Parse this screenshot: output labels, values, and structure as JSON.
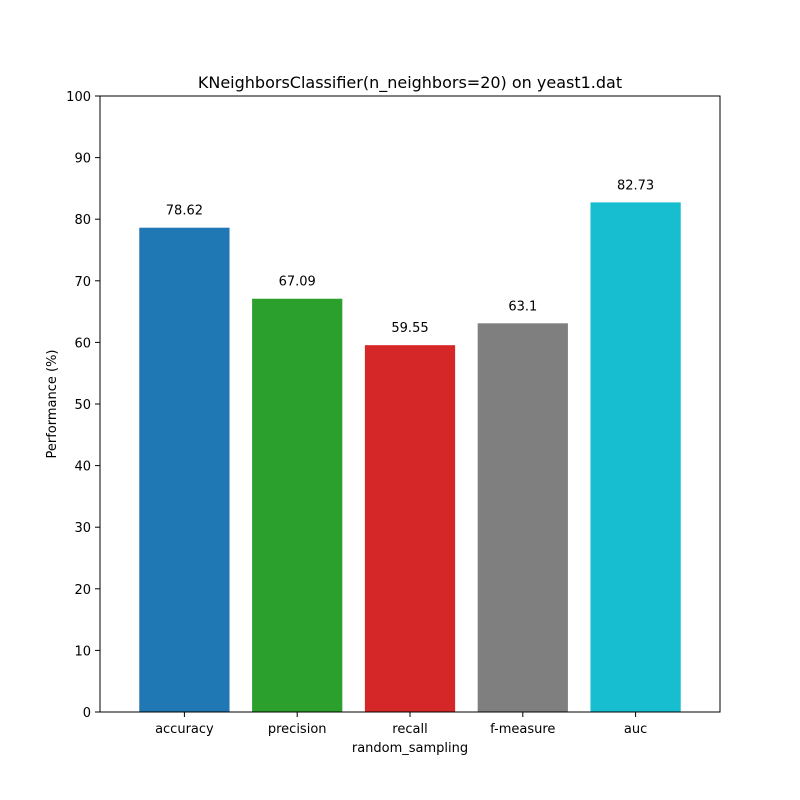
{
  "chart_data": {
    "type": "bar",
    "title": "KNeighborsClassifier(n_neighbors=20) on yeast1.dat",
    "xlabel": "random_sampling",
    "ylabel": "Performance (%)",
    "categories": [
      "accuracy",
      "precision",
      "recall",
      "f-measure",
      "auc"
    ],
    "values": [
      78.62,
      67.09,
      59.55,
      63.1,
      82.73
    ],
    "value_labels": [
      "78.62",
      "67.09",
      "59.55",
      "63.1",
      "82.73"
    ],
    "colors": [
      "#1f77b4",
      "#2ca02c",
      "#d62728",
      "#7f7f7f",
      "#17becf"
    ],
    "ylim": [
      0,
      100
    ],
    "yticks": [
      "0",
      "10",
      "20",
      "30",
      "40",
      "50",
      "60",
      "70",
      "80",
      "90",
      "100"
    ],
    "grid": false,
    "legend": false
  }
}
